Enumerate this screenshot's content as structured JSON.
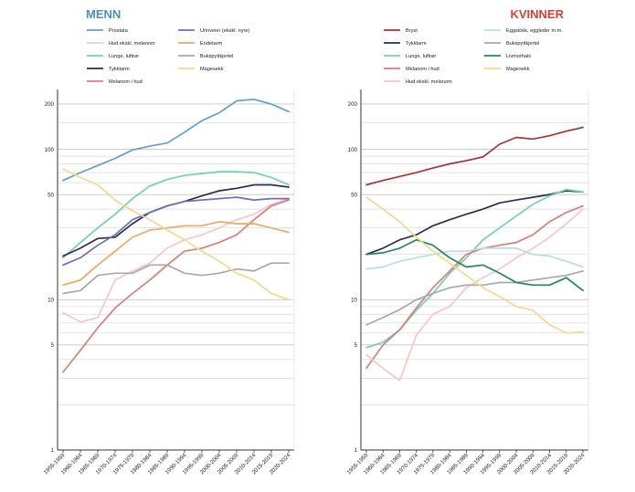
{
  "chart_data": [
    {
      "type": "line",
      "title": "MENN",
      "title_color": "#4a90b8",
      "y_scale": "log",
      "ylim": [
        1,
        250
      ],
      "y_ticks": [
        1,
        5,
        10,
        50,
        100,
        200
      ],
      "grid": true,
      "legend_position": "top",
      "legend_columns": 3,
      "categories": [
        "1955-1959",
        "1960-1964",
        "1965-1969",
        "1970-1974",
        "1975-1979",
        "1980-1984",
        "1985-1989",
        "1990-1994",
        "1995-1999",
        "2000-2004",
        "2005-2009",
        "2010-2014",
        "2015-2019",
        "2020-2024"
      ],
      "series": [
        {
          "name": "Prostata",
          "color": "#5ba3c9",
          "values": [
            62,
            70,
            78,
            87,
            99,
            105,
            110,
            130,
            155,
            175,
            210,
            215,
            200,
            178
          ]
        },
        {
          "name": "Hud ekskl. melanom",
          "color": "#f7c6c7",
          "values": [
            8.2,
            7.1,
            7.6,
            13.5,
            15.5,
            17.5,
            22,
            25,
            27,
            30,
            34,
            37,
            43,
            47
          ]
        },
        {
          "name": "Lunge, luftrør",
          "color": "#6bd4b0",
          "values": [
            19,
            24,
            30,
            37,
            47,
            57,
            63,
            67,
            69,
            71,
            71,
            70,
            65,
            58
          ]
        },
        {
          "name": "Tykktarm",
          "color": "#2d2d52",
          "values": [
            19.5,
            22,
            25.5,
            26,
            32,
            38,
            42,
            45,
            49,
            53,
            55,
            58,
            58,
            56
          ]
        },
        {
          "name": "Melanom i hud",
          "color": "#e07b7b",
          "values": [
            3.3,
            4.6,
            6.5,
            8.8,
            11,
            13.5,
            17,
            21,
            22,
            24,
            27,
            34,
            42,
            46
          ]
        },
        {
          "name": "Urinveier (ekskl. nyre)",
          "color": "#6a6ec8",
          "values": [
            17,
            19,
            23,
            27,
            34,
            38,
            42,
            45,
            46,
            47,
            48,
            46,
            47,
            47
          ]
        },
        {
          "name": "Endetarm",
          "color": "#f0a860",
          "values": [
            12.5,
            13.5,
            17,
            21,
            26,
            29,
            30,
            31,
            31,
            33,
            32,
            32,
            30,
            28
          ]
        },
        {
          "name": "Bukspyttkjertel",
          "color": "#a8a8a8",
          "values": [
            11,
            11.5,
            14.5,
            15,
            15,
            17,
            17,
            15,
            14.5,
            15,
            16,
            15.5,
            17.5,
            17.5
          ]
        },
        {
          "name": "Magesekk",
          "color": "#f5d88a",
          "values": [
            74,
            65,
            58,
            46,
            39,
            34,
            29,
            25,
            21,
            18,
            15,
            13.5,
            11,
            10
          ]
        }
      ]
    },
    {
      "type": "line",
      "title": "KVINNER",
      "title_color": "#e03b33",
      "y_scale": "log",
      "ylim": [
        1,
        250
      ],
      "y_ticks": [
        1,
        5,
        10,
        50,
        100,
        200
      ],
      "grid": true,
      "legend_position": "top",
      "legend_columns": 2,
      "categories": [
        "1955-1959",
        "1960-1964",
        "1965-1969",
        "1970-1974",
        "1975-1979",
        "1980-1984",
        "1985-1989",
        "1990-1994",
        "1995-1999",
        "2000-2004",
        "2005-2009",
        "2010-2014",
        "2015-2019",
        "2020-2024"
      ],
      "series": [
        {
          "name": "Bryst",
          "color": "#b03030",
          "values": [
            58,
            62,
            66,
            70,
            75,
            80,
            84,
            89,
            108,
            120,
            117,
            123,
            132,
            140
          ]
        },
        {
          "name": "Tykktarm",
          "color": "#2d2d52",
          "values": [
            20,
            22,
            25,
            27,
            31,
            34,
            37,
            40,
            44,
            46,
            48,
            50,
            53,
            52
          ]
        },
        {
          "name": "Lunge, luftrør",
          "color": "#6bd4b0",
          "values": [
            4.8,
            5.2,
            6.3,
            8.5,
            11,
            15,
            19,
            25,
            30,
            36,
            43,
            49,
            54,
            52
          ]
        },
        {
          "name": "Melanom i hud",
          "color": "#e07b7b",
          "values": [
            3.5,
            5,
            6.3,
            8.8,
            12,
            15.5,
            20,
            22,
            23,
            24,
            27,
            33,
            38,
            42
          ]
        },
        {
          "name": "Hud ekskl. melanom",
          "color": "#f7c6c7",
          "values": [
            4.3,
            3.5,
            2.9,
            5.8,
            8,
            9,
            12,
            14,
            16,
            19,
            22,
            26,
            32,
            40
          ]
        },
        {
          "name": "Eggstokk, eggleder m.m.",
          "color": "#b8dcea",
          "values": [
            16,
            16.5,
            18,
            19,
            20,
            21,
            21,
            22,
            22,
            22,
            20,
            19.5,
            18,
            16.5
          ]
        },
        {
          "name": "Bukspyttkjertel",
          "color": "#a8a8a8",
          "values": [
            6.8,
            7.6,
            8.6,
            10,
            11,
            12,
            12.5,
            12.5,
            13,
            13,
            13.5,
            14,
            14.5,
            15.5
          ]
        },
        {
          "name": "Livmorhals",
          "color": "#1e8c5a",
          "values": [
            20,
            20.5,
            22,
            25,
            23,
            19,
            16.5,
            17,
            15,
            13,
            12.5,
            12.5,
            14,
            11.5
          ]
        },
        {
          "name": "Magesekk",
          "color": "#f5d88a",
          "values": [
            48,
            40,
            33,
            26,
            21,
            17.5,
            14.5,
            12,
            10.5,
            9,
            8.5,
            6.8,
            6,
            6.1
          ]
        }
      ]
    }
  ]
}
